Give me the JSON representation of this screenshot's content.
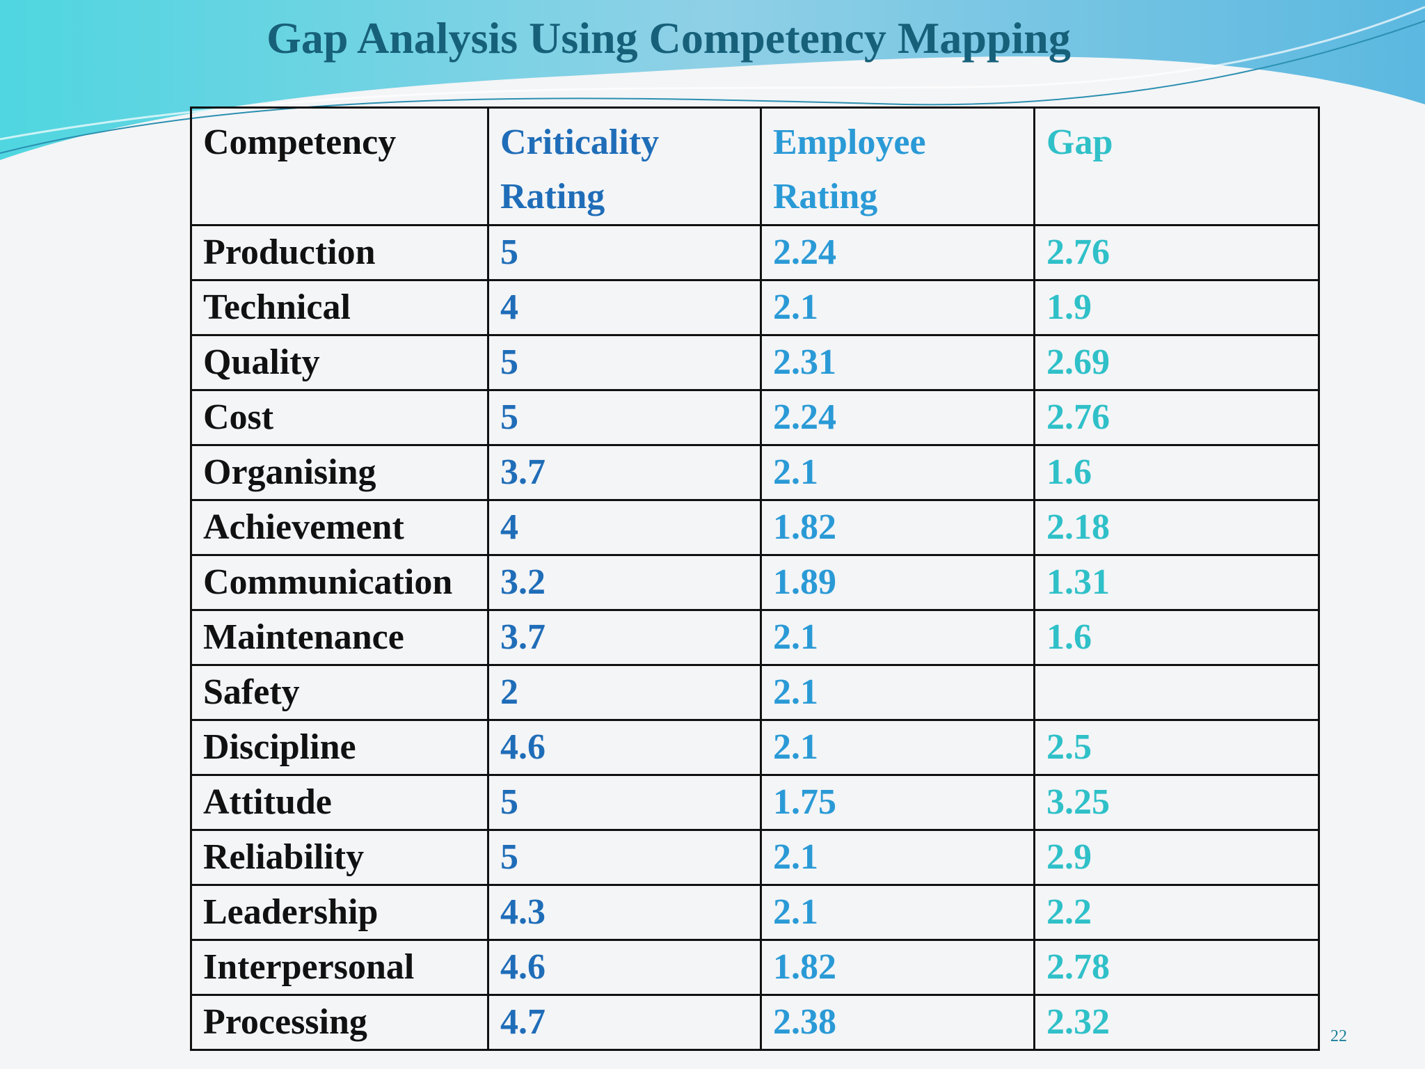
{
  "title": "Gap Analysis Using Competency Mapping",
  "table": {
    "header": [
      "Competency",
      "Criticality Rating",
      "Employee Rating",
      "Gap"
    ],
    "rows": [
      [
        "Production",
        5,
        2.24,
        2.76
      ],
      [
        "Technical",
        4,
        2.1,
        1.9
      ],
      [
        "Quality",
        5,
        2.31,
        2.69
      ],
      [
        "Cost",
        5,
        2.24,
        2.76
      ],
      [
        "Organising",
        3.7,
        2.1,
        1.6
      ],
      [
        "Achievement",
        4,
        1.82,
        2.18
      ],
      [
        "Communication",
        3.2,
        1.89,
        1.31
      ],
      [
        "Maintenance",
        3.7,
        2.1,
        1.6
      ],
      [
        "Safety",
        2,
        2.1
      ],
      [
        "Discipline",
        4.6,
        2.1,
        2.5
      ],
      [
        "Attitude",
        5,
        1.75,
        3.25
      ],
      [
        "Reliability",
        5,
        2.1,
        2.9
      ],
      [
        "Leadership",
        4.3,
        2.1,
        2.2
      ],
      [
        "Interpersonal",
        4.6,
        1.82,
        2.78
      ],
      [
        "Processing",
        4.7,
        2.38,
        2.32
      ]
    ]
  },
  "page_number": "22"
}
